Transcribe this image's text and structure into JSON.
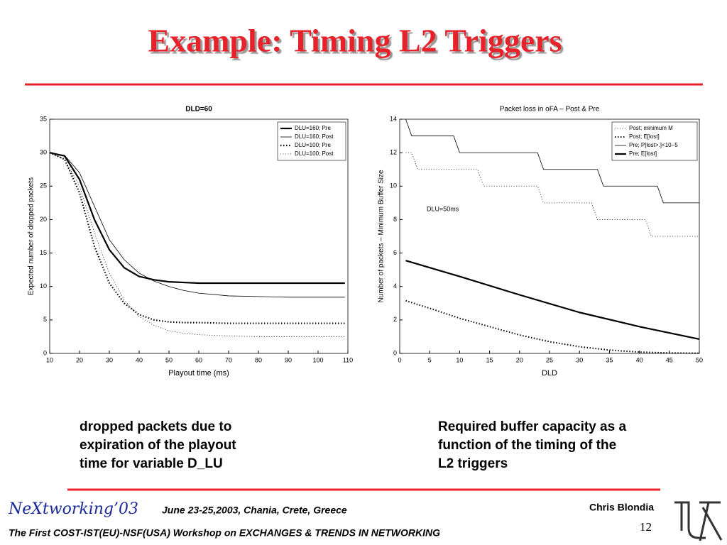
{
  "slide": {
    "title": "Example: Timing L2 Triggers",
    "caption_left": [
      "dropped packets due to",
      "expiration of the playout",
      "time for variable D_LU"
    ],
    "caption_right": [
      "Required buffer capacity as a",
      "function of the timing of the",
      "L2 triggers"
    ],
    "footer_brand": "NeXtworking’03",
    "footer_date": "June 23-25,2003, Chania, Crete, Greece",
    "footer_author": "Chris Blondia",
    "page_number": "12",
    "footer_workshop": "The First COST-IST(EU)-NSF(USA) Workshop on EXCHANGES & TRENDS IN NETWORKING"
  },
  "chart_data": [
    {
      "type": "line",
      "title": "DLD=60",
      "x_label": "Playout time (ms)",
      "y_label": "Expected number of dropped packets",
      "xlim": [
        10,
        110
      ],
      "ylim": [
        0,
        35
      ],
      "xticks": [
        10,
        20,
        30,
        40,
        50,
        60,
        70,
        80,
        90,
        100,
        110
      ],
      "yticks": [
        0,
        5,
        10,
        15,
        20,
        25,
        30,
        35
      ],
      "legend": "upper right",
      "x": [
        10,
        15,
        20,
        25,
        30,
        35,
        40,
        45,
        50,
        55,
        60,
        70,
        80,
        90,
        100,
        109
      ],
      "series": [
        {
          "name": "DLU=160; Pre",
          "color": "#000",
          "style": "solid",
          "width": 2.2,
          "values": [
            30,
            29.5,
            26,
            20,
            15.5,
            12.8,
            11.5,
            11,
            10.7,
            10.6,
            10.5,
            10.5,
            10.5,
            10.5,
            10.5,
            10.5
          ]
        },
        {
          "name": "DLU=160; Post",
          "color": "#000",
          "style": "solid",
          "width": 0.8,
          "values": [
            30,
            29.6,
            27,
            22,
            17,
            14,
            12,
            10.8,
            10,
            9.4,
            9,
            8.6,
            8.5,
            8.4,
            8.4,
            8.4
          ]
        },
        {
          "name": "DLU=100; Pre",
          "color": "#000",
          "style": "dotted",
          "width": 2.2,
          "values": [
            30,
            29,
            24,
            16,
            10.5,
            7.5,
            5.8,
            5,
            4.7,
            4.6,
            4.6,
            4.5,
            4.5,
            4.5,
            4.5,
            4.5
          ]
        },
        {
          "name": "DLU=100; Post",
          "color": "#000",
          "style": "dotted",
          "width": 0.8,
          "values": [
            30,
            29,
            25,
            18,
            12,
            8,
            5.5,
            4.2,
            3.4,
            3,
            2.8,
            2.6,
            2.5,
            2.5,
            2.5,
            2.5
          ]
        }
      ]
    },
    {
      "type": "line",
      "title": "Packet loss in oFA – Post & Pre",
      "x_label": "DLD",
      "y_label": "Number of packets – Minimum Buffer Size",
      "annotation": "DLU=50ms",
      "xlim": [
        0,
        50
      ],
      "ylim": [
        0,
        14
      ],
      "xticks": [
        0,
        5,
        10,
        15,
        20,
        25,
        30,
        35,
        40,
        45,
        50
      ],
      "yticks": [
        0,
        2,
        4,
        6,
        8,
        10,
        12,
        14
      ],
      "legend": "upper right",
      "series": [
        {
          "name": "Post; minimum M",
          "color": "#000",
          "style": "dotted",
          "width": 0.8,
          "x": [
            1,
            2,
            3,
            13,
            14,
            23,
            24,
            32,
            33,
            41,
            42,
            50
          ],
          "values": [
            12,
            12,
            11,
            11,
            10,
            10,
            9,
            9,
            8,
            8,
            7,
            7
          ]
        },
        {
          "name": "Post; E[lost]",
          "color": "#000",
          "style": "dotted",
          "width": 2,
          "x": [
            1,
            5,
            10,
            15,
            20,
            25,
            30,
            35,
            40,
            45,
            50
          ],
          "values": [
            3.15,
            2.7,
            2.1,
            1.6,
            1.1,
            0.7,
            0.4,
            0.2,
            0.08,
            0.03,
            0.01
          ]
        },
        {
          "name": "Pre; P[lost>.]<10−5",
          "color": "#000",
          "style": "solid",
          "width": 0.8,
          "x": [
            1,
            2,
            9,
            10,
            23,
            24,
            33,
            34,
            43,
            44,
            50
          ],
          "values": [
            14,
            13,
            13,
            12,
            12,
            11,
            11,
            10,
            10,
            9,
            9
          ]
        },
        {
          "name": "Pre; E[lost]",
          "color": "#000",
          "style": "solid",
          "width": 2.2,
          "x": [
            1,
            10,
            20,
            30,
            40,
            50
          ],
          "values": [
            5.55,
            4.6,
            3.5,
            2.45,
            1.6,
            0.85
          ]
        }
      ]
    }
  ]
}
